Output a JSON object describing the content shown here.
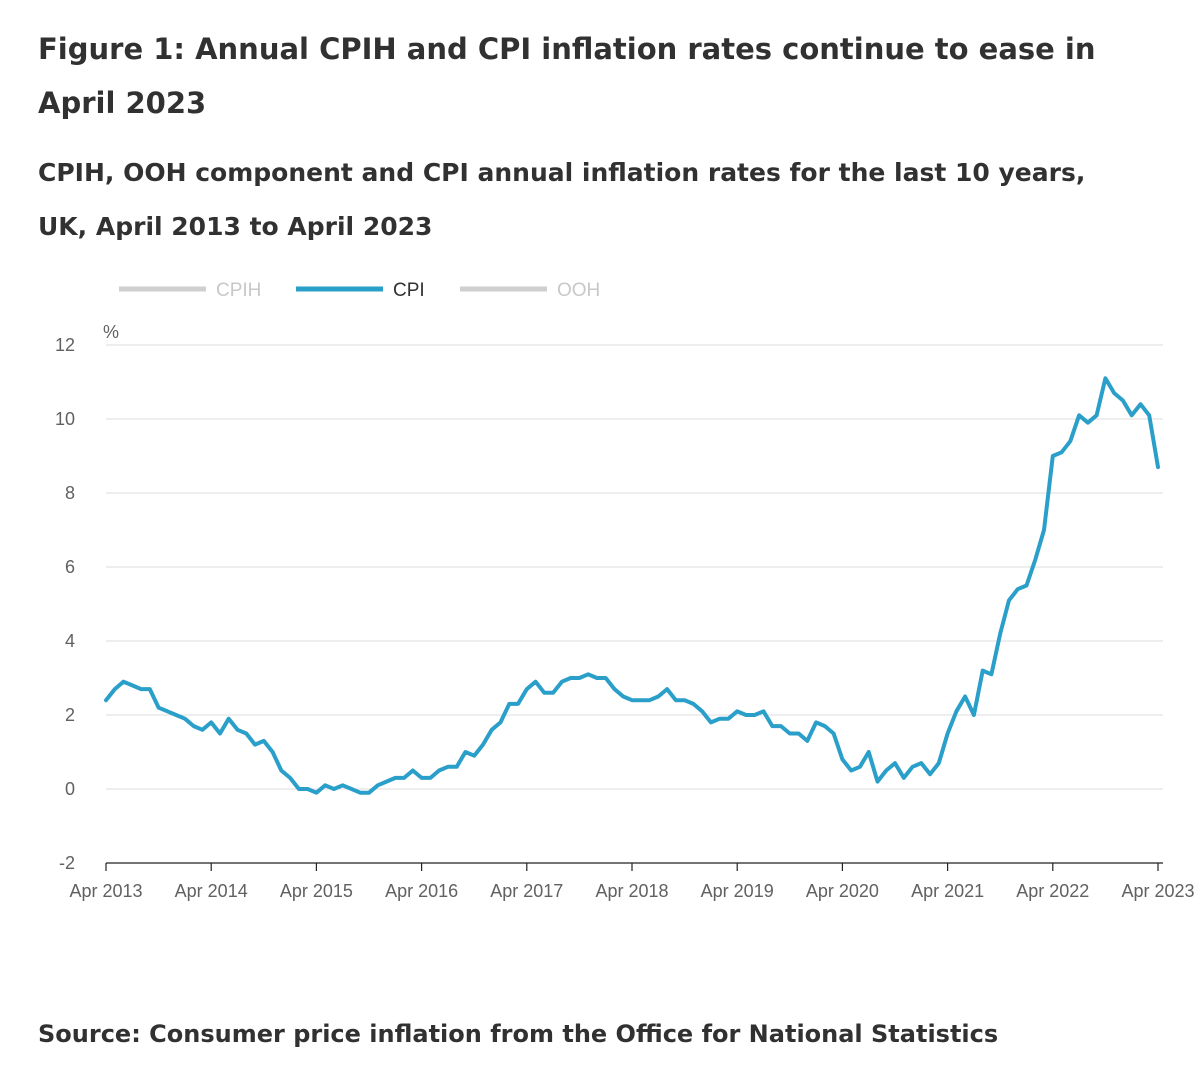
{
  "figure": {
    "title": "Figure 1: Annual CPIH and CPI inflation rates continue to ease in April 2023",
    "subtitle": "CPIH, OOH component and CPI annual inflation rates for the last 10 years, UK, April 2013 to April 2023",
    "source": "Source: Consumer price inflation from the Office for National Statistics"
  },
  "colors": {
    "cpi": "#2a9fc9",
    "inactive_legend": "#cfcfcf",
    "inactive_legend_text": "#c8c8c8",
    "active_legend_text": "#323132",
    "grid": "#dcdcdc",
    "axis": "#222222",
    "tick_text": "#616161"
  },
  "chart_data": {
    "type": "line",
    "ylabel": "%",
    "ylim": [
      -2,
      12
    ],
    "yticks": [
      "-2",
      "0",
      "2",
      "4",
      "6",
      "8",
      "10",
      "12"
    ],
    "xticks": [
      "Apr 2013",
      "Apr 2014",
      "Apr 2015",
      "Apr 2016",
      "Apr 2017",
      "Apr 2018",
      "Apr 2019",
      "Apr 2020",
      "Apr 2021",
      "Apr 2022",
      "Apr 2023"
    ],
    "grid": true,
    "legend": [
      {
        "name": "CPIH",
        "active": false
      },
      {
        "name": "CPI",
        "active": true
      },
      {
        "name": "OOH",
        "active": false
      }
    ],
    "series": [
      {
        "name": "CPI",
        "values": [
          2.4,
          2.7,
          2.9,
          2.8,
          2.7,
          2.7,
          2.2,
          2.1,
          2.0,
          1.9,
          1.7,
          1.6,
          1.8,
          1.5,
          1.9,
          1.6,
          1.5,
          1.2,
          1.3,
          1.0,
          0.5,
          0.3,
          0.0,
          0.0,
          -0.1,
          0.1,
          0.0,
          0.1,
          0.0,
          -0.1,
          -0.1,
          0.1,
          0.2,
          0.3,
          0.3,
          0.5,
          0.3,
          0.3,
          0.5,
          0.6,
          0.6,
          1.0,
          0.9,
          1.2,
          1.6,
          1.8,
          2.3,
          2.3,
          2.7,
          2.9,
          2.6,
          2.6,
          2.9,
          3.0,
          3.0,
          3.1,
          3.0,
          3.0,
          2.7,
          2.5,
          2.4,
          2.4,
          2.4,
          2.5,
          2.7,
          2.4,
          2.4,
          2.3,
          2.1,
          1.8,
          1.9,
          1.9,
          2.1,
          2.0,
          2.0,
          2.1,
          1.7,
          1.7,
          1.5,
          1.5,
          1.3,
          1.8,
          1.7,
          1.5,
          0.8,
          0.5,
          0.6,
          1.0,
          0.2,
          0.5,
          0.7,
          0.3,
          0.6,
          0.7,
          0.4,
          0.7,
          1.5,
          2.1,
          2.5,
          2.0,
          3.2,
          3.1,
          4.2,
          5.1,
          5.4,
          5.5,
          6.2,
          7.0,
          9.0,
          9.1,
          9.4,
          10.1,
          9.9,
          10.1,
          11.1,
          10.7,
          10.5,
          10.1,
          10.4,
          10.1,
          8.7
        ]
      }
    ]
  }
}
